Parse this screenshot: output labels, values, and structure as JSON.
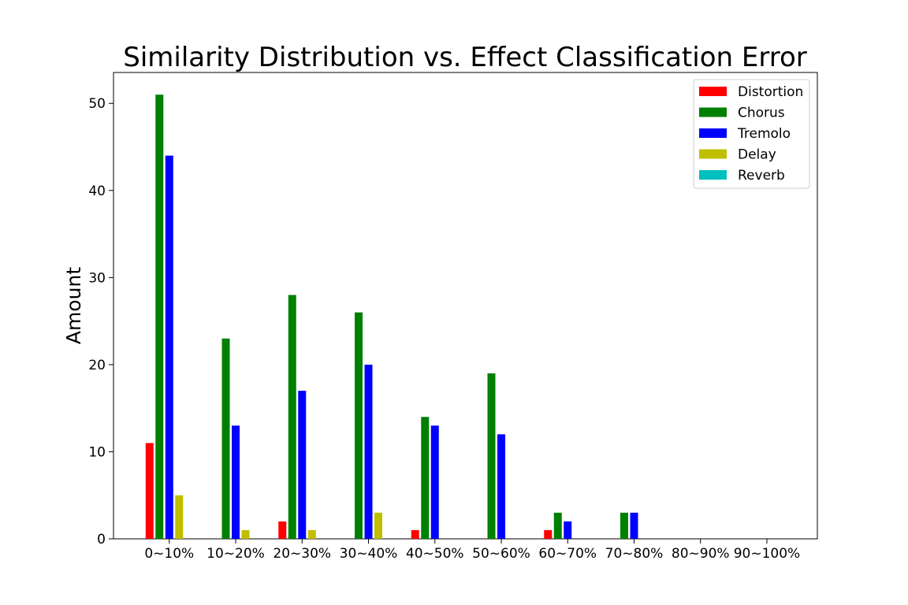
{
  "chart_data": {
    "type": "bar",
    "title": "Similarity Distribution vs. Effect Classification Error",
    "xlabel": "",
    "ylabel": "Amount",
    "categories": [
      "0~10%",
      "10~20%",
      "20~30%",
      "30~40%",
      "40~50%",
      "50~60%",
      "60~70%",
      "70~80%",
      "80~90%",
      "90~100%"
    ],
    "series": [
      {
        "name": "Distortion",
        "color": "#ff0000",
        "values": [
          11,
          0,
          2,
          0,
          1,
          0,
          1,
          0,
          0,
          0
        ]
      },
      {
        "name": "Chorus",
        "color": "#008000",
        "values": [
          51,
          23,
          28,
          26,
          14,
          19,
          3,
          3,
          0,
          0
        ]
      },
      {
        "name": "Tremolo",
        "color": "#0000ff",
        "values": [
          44,
          13,
          17,
          20,
          13,
          12,
          2,
          3,
          0,
          0
        ]
      },
      {
        "name": "Delay",
        "color": "#bfbf00",
        "values": [
          5,
          1,
          1,
          3,
          0,
          0,
          0,
          0,
          0,
          0
        ]
      },
      {
        "name": "Reverb",
        "color": "#00bfbf",
        "values": [
          0,
          0,
          0,
          0,
          0,
          0,
          0,
          0,
          0,
          0
        ]
      }
    ],
    "ylim": [
      0,
      53.55
    ],
    "yticks": [
      0,
      10,
      20,
      30,
      40,
      50
    ],
    "grid": false,
    "legend_position": "top-right"
  }
}
